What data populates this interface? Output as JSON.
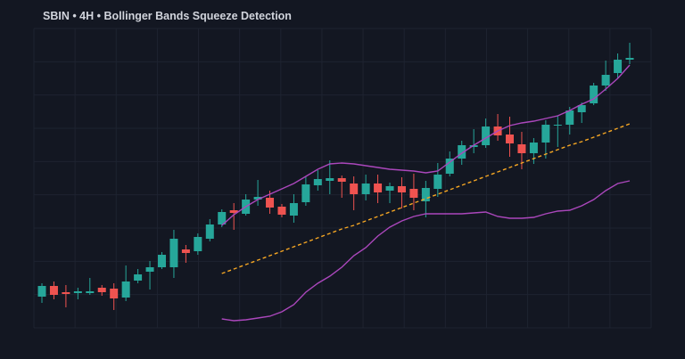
{
  "chart_data": {
    "type": "candlestick",
    "title": "SBIN • 4H • Bollinger Bands Squeeze Detection",
    "open": [
      35,
      47,
      40,
      39,
      39,
      45,
      44,
      34,
      53,
      63,
      68,
      68,
      88,
      86,
      100,
      116,
      132,
      128,
      144,
      146,
      136,
      126,
      141,
      160,
      165,
      168,
      162,
      150,
      162,
      154,
      159,
      156,
      142,
      156,
      173,
      190,
      203,
      205,
      226,
      217,
      206,
      196,
      208,
      227,
      228,
      242,
      252,
      272,
      286,
      301
    ],
    "high": [
      50,
      52,
      48,
      45,
      56,
      48,
      50,
      70,
      66,
      75,
      85,
      110,
      93,
      106,
      122,
      133,
      140,
      150,
      166,
      154,
      139,
      150,
      170,
      177,
      188,
      171,
      170,
      172,
      172,
      163,
      169,
      173,
      165,
      185,
      198,
      210,
      223,
      235,
      240,
      237,
      220,
      213,
      233,
      238,
      248,
      253,
      275,
      300,
      308,
      320
    ],
    "low": [
      28,
      32,
      23,
      32,
      37,
      36,
      20,
      30,
      50,
      43,
      66,
      56,
      73,
      82,
      97,
      113,
      110,
      126,
      137,
      128,
      124,
      118,
      137,
      154,
      150,
      146,
      132,
      143,
      140,
      140,
      134,
      132,
      124,
      147,
      170,
      183,
      196,
      202,
      210,
      192,
      178,
      184,
      190,
      203,
      217,
      230,
      250,
      266,
      280,
      296
    ],
    "close": [
      47,
      37,
      38,
      41,
      41,
      40,
      33,
      52,
      60,
      68,
      82,
      100,
      84,
      102,
      116,
      130,
      129,
      144,
      147,
      135,
      127,
      140,
      161,
      167,
      168,
      164,
      150,
      162,
      152,
      159,
      152,
      146,
      157,
      172,
      190,
      205,
      205,
      226,
      216,
      207,
      196,
      208,
      228,
      228,
      244,
      250,
      272,
      284,
      301,
      303
    ],
    "up_color": "#26a69a",
    "down_color": "#ef5350",
    "overlays": [
      {
        "color": "#ab47bc",
        "style": "solid",
        "values": [
          null,
          null,
          null,
          null,
          null,
          null,
          null,
          null,
          null,
          null,
          null,
          null,
          null,
          null,
          null,
          115,
          127,
          136,
          144,
          150,
          156,
          162,
          170,
          178,
          184,
          185,
          184,
          182,
          180,
          178,
          177,
          176,
          174,
          176,
          186,
          196,
          205,
          213,
          221,
          227,
          230,
          232,
          235,
          238,
          244,
          251,
          257,
          268,
          280,
          295
        ]
      },
      {
        "color": "#f5a623",
        "style": "dashed",
        "values": [
          null,
          null,
          null,
          null,
          null,
          null,
          null,
          null,
          null,
          null,
          null,
          null,
          null,
          null,
          null,
          61,
          66,
          71,
          76,
          81,
          86,
          91,
          96,
          101,
          106,
          111,
          115,
          120,
          125,
          130,
          135,
          140,
          145,
          150,
          155,
          160,
          165,
          170,
          175,
          180,
          185,
          190,
          195,
          200,
          205,
          209,
          214,
          219,
          224,
          229
        ]
      },
      {
        "color": "#ab47bc",
        "style": "solid",
        "values": [
          null,
          null,
          null,
          null,
          null,
          null,
          null,
          null,
          null,
          null,
          null,
          null,
          null,
          null,
          null,
          10,
          8,
          9,
          11,
          13,
          18,
          26,
          40,
          50,
          58,
          68,
          81,
          90,
          103,
          113,
          120,
          125,
          128,
          128,
          128,
          128,
          129,
          130,
          125,
          123,
          123,
          124,
          128,
          131,
          132,
          137,
          144,
          154,
          162,
          165
        ]
      }
    ],
    "ylim": [
      0,
      336
    ],
    "grid": true
  }
}
